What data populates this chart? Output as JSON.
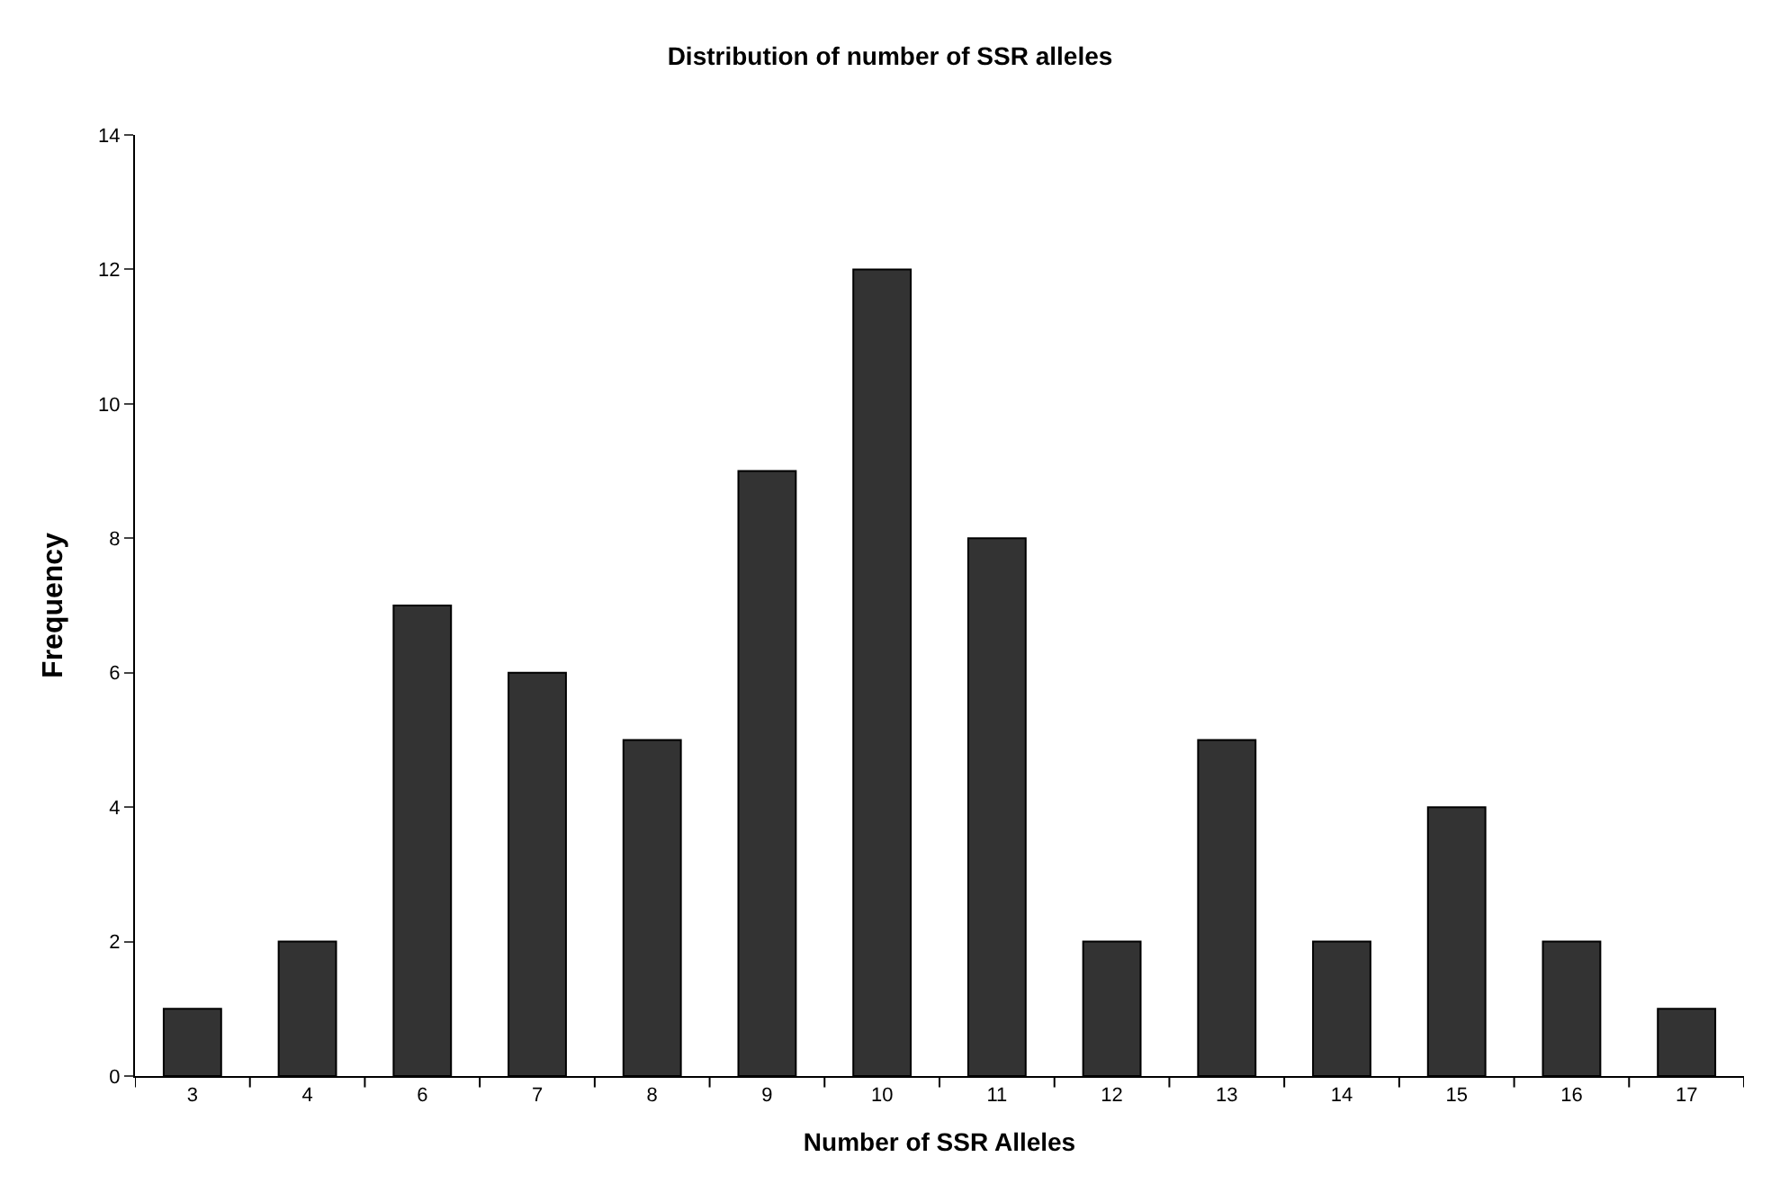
{
  "chart_data": {
    "type": "bar",
    "title": "Distribution of number of SSR alleles",
    "xlabel": "Number of SSR Alleles",
    "ylabel": "Frequency",
    "categories": [
      "3",
      "4",
      "6",
      "7",
      "8",
      "9",
      "10",
      "11",
      "12",
      "13",
      "14",
      "15",
      "16",
      "17"
    ],
    "values": [
      1,
      2,
      7,
      6,
      5,
      9,
      12,
      8,
      2,
      5,
      2,
      4,
      2,
      1
    ],
    "color": "#333333",
    "ylim": [
      0,
      14
    ],
    "yticks": [
      0,
      2,
      4,
      6,
      8,
      10,
      12,
      14
    ],
    "legend": false
  }
}
